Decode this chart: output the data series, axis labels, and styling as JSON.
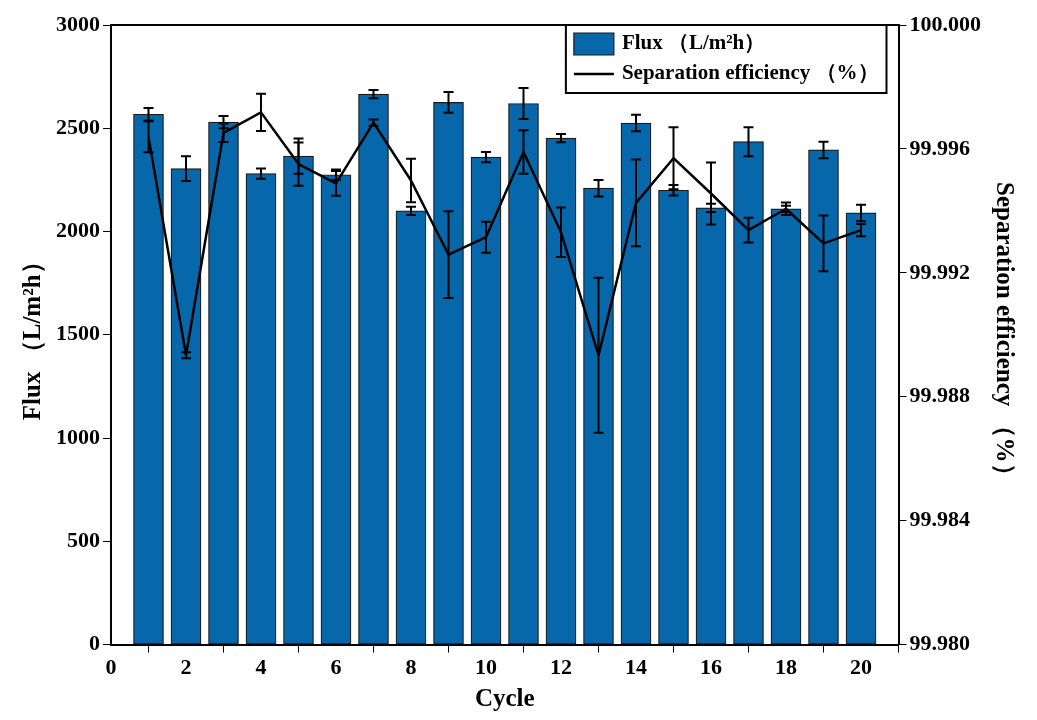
{
  "chart_data": {
    "type": "bar",
    "xlabel": "Cycle",
    "ylabel": "Flux （L/m²h）",
    "y2label": "Separation efficiency （%）",
    "x": [
      1,
      2,
      3,
      4,
      5,
      6,
      7,
      8,
      9,
      10,
      11,
      12,
      13,
      14,
      15,
      16,
      17,
      18,
      19,
      20
    ],
    "xlim": [
      0,
      21
    ],
    "xticks": [
      0,
      2,
      4,
      6,
      8,
      10,
      12,
      14,
      16,
      18,
      20
    ],
    "ylim": [
      0,
      3000
    ],
    "yticks": [
      0,
      500,
      1000,
      1500,
      2000,
      2500,
      3000
    ],
    "y2lim": [
      99.98,
      100
    ],
    "y2ticks": [
      {
        "value": 99.98,
        "label": "99.980"
      },
      {
        "value": 99.984,
        "label": "99.984"
      },
      {
        "value": 99.988,
        "label": "99.988"
      },
      {
        "value": 99.992,
        "label": "99.992"
      },
      {
        "value": 99.996,
        "label": "99.996"
      },
      {
        "value": 100,
        "label": "100.000"
      }
    ],
    "legend": "top right",
    "grid": false,
    "series": [
      {
        "name": "Flux （L/m²h）",
        "color": "#0767ab",
        "values": [
          2568,
          2305,
          2530,
          2280,
          2365,
          2275,
          2665,
          2100,
          2625,
          2360,
          2620,
          2452,
          2210,
          2525,
          2200,
          2115,
          2435,
          2110,
          2395,
          2090
        ],
        "errors": [
          30,
          60,
          30,
          25,
          85,
          25,
          20,
          20,
          50,
          25,
          75,
          20,
          40,
          40,
          25,
          20,
          70,
          15,
          40,
          40
        ]
      },
      {
        "name": "Separation efficiency （%）",
        "type": "line",
        "axis": "y2",
        "color": "#000000",
        "marker": "none",
        "values": [
          99.99639,
          99.98934,
          99.99652,
          99.99718,
          99.99551,
          99.99489,
          99.99685,
          99.99498,
          99.99259,
          99.99315,
          99.9959,
          99.99331,
          99.98934,
          99.99426,
          99.9957,
          99.99456,
          99.99338,
          99.99407,
          99.99295,
          99.99338
        ],
        "errors": [
          0.0005,
          0.0001,
          0.0003,
          0.0006,
          0.0007,
          0.0004,
          0.0001,
          0.0007,
          0.0014,
          0.0005,
          0.0007,
          0.0008,
          0.0025,
          0.0014,
          0.001,
          0.001,
          0.0004,
          0.0002,
          0.0009,
          0.0002
        ]
      }
    ]
  }
}
